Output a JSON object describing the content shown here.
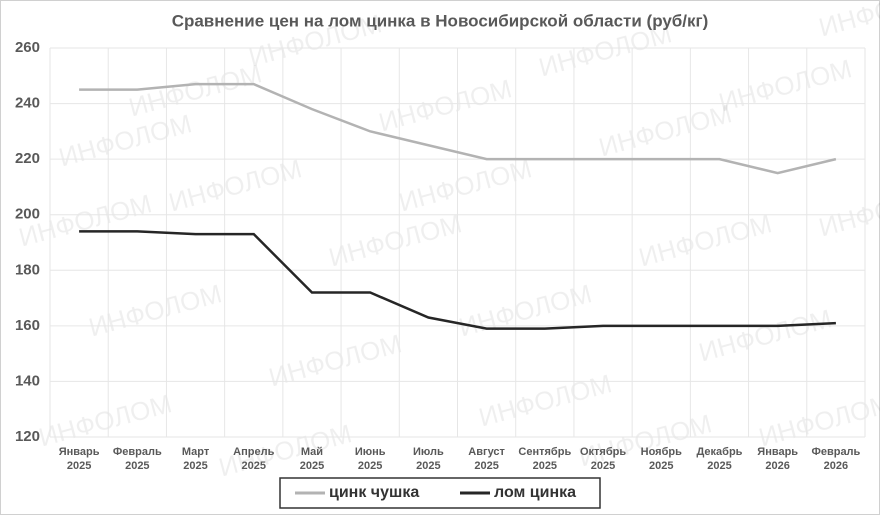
{
  "chart_data": {
    "type": "line",
    "title": "Сравнение цен на лом цинка в Новосибирской области (руб/кг)",
    "watermark": "ИНФОЛОМ",
    "categories": [
      "Январь 2025",
      "Февраль 2025",
      "Март 2025",
      "Апрель 2025",
      "Май 2025",
      "Июнь 2025",
      "Июль 2025",
      "Август 2025",
      "Сентябрь 2025",
      "Октябрь 2025",
      "Ноябрь 2025",
      "Декабрь 2025",
      "Январь 2026",
      "Февраль 2026"
    ],
    "series": [
      {
        "name": "цинк чушка",
        "color": "#b3b3b3",
        "values": [
          245,
          245,
          247,
          247,
          238,
          230,
          225,
          220,
          220,
          220,
          220,
          220,
          215,
          220
        ]
      },
      {
        "name": "лом цинка",
        "color": "#262626",
        "values": [
          194,
          194,
          193,
          193,
          172,
          172,
          163,
          159,
          159,
          160,
          160,
          160,
          160,
          161
        ]
      }
    ],
    "ylim": [
      120,
      260
    ],
    "yticks": [
      120,
      140,
      160,
      180,
      200,
      220,
      240,
      260
    ],
    "grid": true,
    "legend": "bottom"
  }
}
